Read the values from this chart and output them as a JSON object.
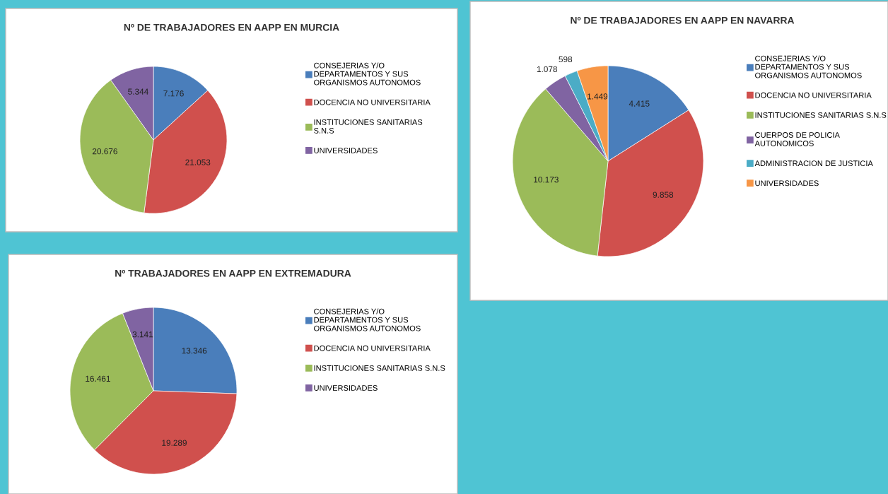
{
  "chart_data": [
    {
      "type": "pie",
      "title": "Nº DE TRABAJADORES EN AAPP EN MURCIA",
      "categories": [
        "CONSEJERIAS Y/O\nDEPARTAMENTOS Y SUS\nORGANISMOS AUTONOMOS",
        "DOCENCIA NO UNIVERSITARIA",
        "INSTITUCIONES SANITARIAS\nS.N.S",
        "UNIVERSIDADES"
      ],
      "values": [
        7176,
        21053,
        20676,
        5344
      ],
      "value_labels": [
        "7.176",
        "21.053",
        "20.676",
        "5.344"
      ],
      "colors": [
        "#4a7ebb",
        "#d0504d",
        "#9bbb59",
        "#8064a2"
      ],
      "legend": "right"
    },
    {
      "type": "pie",
      "title": "Nº DE TRABAJADORES EN AAPP EN NAVARRA",
      "categories": [
        "CONSEJERIAS Y/O\nDEPARTAMENTOS Y SUS\nORGANISMOS AUTONOMOS",
        "DOCENCIA NO UNIVERSITARIA",
        "INSTITUCIONES SANITARIAS S.N.S",
        "CUERPOS DE POLICIA\nAUTONOMICOS",
        "ADMINISTRACION DE JUSTICIA",
        "UNIVERSIDADES"
      ],
      "values": [
        4415,
        9858,
        10173,
        1078,
        598,
        1449
      ],
      "value_labels": [
        "4.415",
        "9.858",
        "10.173",
        "1.078",
        "598",
        "1.449"
      ],
      "colors": [
        "#4a7ebb",
        "#d0504d",
        "#9bbb59",
        "#8064a2",
        "#4bacc6",
        "#f79646"
      ],
      "legend": "right"
    },
    {
      "type": "pie",
      "title": "Nº TRABAJADORES EN AAPP EN EXTREMADURA",
      "categories": [
        "CONSEJERIAS Y/O\nDEPARTAMENTOS Y SUS\nORGANISMOS AUTONOMOS",
        "DOCENCIA NO UNIVERSITARIA",
        "INSTITUCIONES SANITARIAS S.N.S",
        "UNIVERSIDADES"
      ],
      "values": [
        13346,
        19289,
        16461,
        3141
      ],
      "value_labels": [
        "13.346",
        "19.289",
        "16.461",
        "3.141"
      ],
      "colors": [
        "#4a7ebb",
        "#d0504d",
        "#9bbb59",
        "#8064a2"
      ],
      "legend": "right"
    }
  ]
}
